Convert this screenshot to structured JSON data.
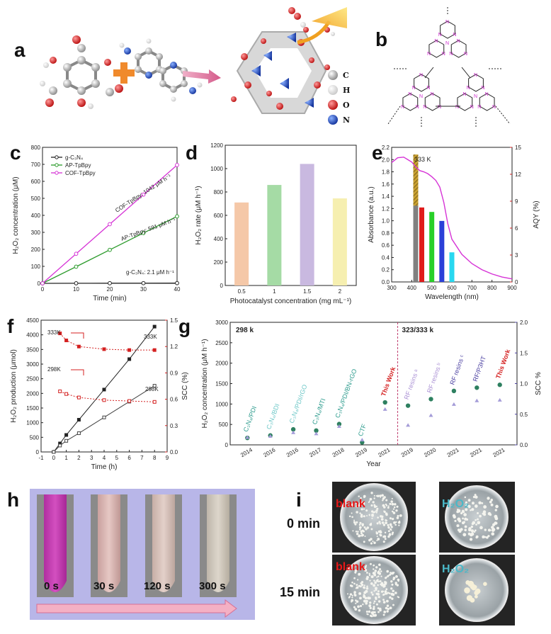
{
  "panel_labels": {
    "a": "a",
    "b": "b",
    "c": "c",
    "d": "d",
    "e": "e",
    "f": "f",
    "g": "g",
    "h": "h",
    "i": "i"
  },
  "molecule_legend": [
    {
      "label": "C",
      "color": "#9a9a9a"
    },
    {
      "label": "H",
      "color": "#f2f2f2"
    },
    {
      "label": "O",
      "color": "#e01b1b"
    },
    {
      "label": "N",
      "color": "#1b4fc9"
    }
  ],
  "colors": {
    "black": "#222222",
    "green": "#2a9a2a",
    "magenta": "#d633d6",
    "red": "#d42020",
    "teal": "#2e9c8e",
    "purple": "#4a3fa0"
  },
  "chart_data": [
    {
      "id": "c",
      "type": "line",
      "xlabel": "Time (min)",
      "ylabel": "H₂O₂ concentration (μM)",
      "xlim": [
        0,
        40
      ],
      "ylim": [
        0,
        800
      ],
      "xticks": [
        0,
        10,
        20,
        30,
        40
      ],
      "yticks": [
        0,
        100,
        200,
        300,
        400,
        500,
        600,
        700,
        800
      ],
      "series": [
        {
          "name": "g-C₃N₄",
          "color": "#222222",
          "x": [
            0,
            10,
            20,
            30,
            40
          ],
          "y": [
            0,
            0.4,
            0.7,
            1.1,
            1.4
          ]
        },
        {
          "name": "AP-TpBpy",
          "color": "#2a9a2a",
          "x": [
            0,
            10,
            20,
            30,
            40
          ],
          "y": [
            0,
            98,
            197,
            296,
            394
          ]
        },
        {
          "name": "COF-TpBpy",
          "color": "#d633d6",
          "x": [
            0,
            10,
            20,
            30,
            40
          ],
          "y": [
            0,
            174,
            348,
            522,
            696
          ]
        }
      ],
      "annotations": [
        {
          "text": "COF-TpBpy: 1042 μM h⁻¹",
          "color": "#d633d6"
        },
        {
          "text": "AP-TpBpy: 591 μM h⁻¹",
          "color": "#2a9a2a"
        },
        {
          "text": "g-C₃N₄: 2.1 μM h⁻¹",
          "color": "#222222"
        }
      ]
    },
    {
      "id": "d",
      "type": "bar",
      "xlabel": "Photocatalyst concentration (mg mL⁻¹)",
      "ylabel": "H₂O₂ rate (μM h⁻¹)",
      "ylim": [
        0,
        1200
      ],
      "yticks": [
        0,
        200,
        400,
        600,
        800,
        1000,
        1200
      ],
      "categories": [
        "0.5",
        "1",
        "1.5",
        "2"
      ],
      "values": [
        710,
        860,
        1040,
        745
      ],
      "colors": [
        "#f5c8a8",
        "#a5dba5",
        "#c9b9e0",
        "#f6efb0"
      ]
    },
    {
      "id": "e",
      "type": "bar",
      "xlabel": "Wavelength (nm)",
      "ylabel": "Absorbance (a.u.)",
      "ylabel_right": "AQY (%)",
      "xlim": [
        300,
        900
      ],
      "ylim": [
        0,
        2.2
      ],
      "ylim_right": [
        0,
        15
      ],
      "xticks": [
        300,
        400,
        500,
        600,
        700,
        800,
        900
      ],
      "yticks": [
        0.0,
        0.2,
        0.4,
        0.6,
        0.8,
        1.0,
        1.2,
        1.4,
        1.6,
        1.8,
        2.0,
        2.2
      ],
      "yticks_right": [
        0,
        3,
        6,
        9,
        12,
        15
      ],
      "annotation": "333 K",
      "bars": [
        {
          "x": 420,
          "aqy": 14.2,
          "color": "#c8a030"
        },
        {
          "x": 420,
          "aqy": 8.5,
          "color": "#808080"
        },
        {
          "x": 450,
          "aqy": 8.3,
          "color": "#e01b1b"
        },
        {
          "x": 500,
          "aqy": 7.8,
          "color": "#28d028"
        },
        {
          "x": 550,
          "aqy": 6.8,
          "color": "#2b40d8"
        },
        {
          "x": 600,
          "aqy": 3.3,
          "color": "#28d8f0"
        }
      ],
      "absorbance": {
        "color": "#d633d6",
        "x": [
          300,
          330,
          360,
          380,
          400,
          420,
          440,
          460,
          480,
          500,
          520,
          540,
          560,
          580,
          600,
          650,
          700,
          750,
          800,
          850,
          900
        ],
        "y": [
          1.95,
          2.03,
          2.04,
          2.0,
          1.96,
          1.88,
          1.82,
          1.8,
          1.77,
          1.72,
          1.66,
          1.55,
          1.3,
          0.95,
          0.7,
          0.45,
          0.3,
          0.2,
          0.13,
          0.08,
          0.05
        ]
      }
    },
    {
      "id": "f",
      "type": "line",
      "xlabel": "Time (h)",
      "ylabel": "H₂O₂ production (μmol)",
      "ylabel_right": "SCC (%)",
      "xlim": [
        -1,
        9
      ],
      "ylim": [
        0,
        4500
      ],
      "ylim_right": [
        0,
        1.5
      ],
      "xticks": [
        -1,
        0,
        1,
        2,
        3,
        4,
        5,
        6,
        7,
        8,
        9
      ],
      "yticks": [
        0,
        500,
        1000,
        1500,
        2000,
        2500,
        3000,
        3500,
        4000,
        4500
      ],
      "yticks_right": [
        0.0,
        0.3,
        0.6,
        0.9,
        1.2,
        1.5
      ],
      "series": [
        {
          "name": "333K",
          "color": "#222222",
          "x": [
            0,
            0.5,
            1,
            2,
            4,
            6,
            8
          ],
          "y": [
            0,
            290,
            580,
            1100,
            2130,
            3170,
            4280
          ]
        },
        {
          "name": "298K",
          "color": "#444444",
          "x": [
            0,
            0.5,
            1,
            2,
            4,
            6,
            8
          ],
          "y": [
            0,
            220,
            380,
            640,
            1180,
            1720,
            2260
          ]
        },
        {
          "name": "333K SCC",
          "color": "#d42020",
          "x": [
            0.5,
            1,
            2,
            4,
            6,
            8
          ],
          "y": [
            1.35,
            1.27,
            1.2,
            1.17,
            1.16,
            1.16
          ]
        },
        {
          "name": "298K SCC",
          "color": "#d42020",
          "x": [
            0.5,
            1,
            2,
            4,
            6,
            8
          ],
          "y": [
            0.69,
            0.66,
            0.62,
            0.59,
            0.58,
            0.57
          ]
        }
      ],
      "labels": [
        {
          "text": "333K",
          "color": "#d42020"
        },
        {
          "text": "298K",
          "color": "#d42020"
        },
        {
          "text": "333K",
          "color": "#222222"
        },
        {
          "text": "298K",
          "color": "#222222"
        }
      ]
    },
    {
      "id": "g",
      "type": "scatter",
      "xlabel": "Year",
      "ylabel": "H₂O₂ concentration (μM h⁻¹)",
      "ylabel_right": "SCC %",
      "ylim": [
        0,
        3000
      ],
      "ylim_right": [
        0,
        2.0
      ],
      "yticks": [
        0,
        500,
        1000,
        1500,
        2000,
        2500,
        3000
      ],
      "yticks_right": [
        0.0,
        0.5,
        1.0,
        1.5,
        2.0
      ],
      "region_labels": [
        {
          "text": "298 k",
          "color": "#3aa0c8"
        },
        {
          "text": "323/333 k",
          "color": "#4a3fa0"
        }
      ],
      "points": [
        {
          "year": "2014",
          "label": "C₃N₄/PDI",
          "conc": 170,
          "scc": 0.12,
          "label_color": "#2e9c8e"
        },
        {
          "year": "2016",
          "label": "C₃N₄/BDI",
          "conc": 230,
          "scc": 0.14,
          "label_color": "#6fc8c8"
        },
        {
          "year": "2016",
          "label": "C₃N₄/PDI/rGO",
          "conc": 380,
          "scc": 0.2,
          "label_color": "#6fc8c8"
        },
        {
          "year": "2017",
          "label": "C₃N₄/MTI",
          "conc": 350,
          "scc": 0.18,
          "label_color": "#2e9c8e"
        },
        {
          "year": "2018",
          "label": "C₃N₄/PDI/BN-rGO",
          "conc": 510,
          "scc": 0.3,
          "label_color": "#2e9c8e"
        },
        {
          "year": "2019",
          "label": "CTF",
          "conc": 60,
          "scc": 0.08,
          "label_color": "#2e9c8e"
        },
        {
          "year": "2021",
          "label": "This Work",
          "conc": 1040,
          "scc": 0.58,
          "label_color": "#d42020"
        },
        {
          "year": "2019",
          "label": "RF resins ᵃ",
          "conc": 960,
          "scc": 0.32,
          "label_color": "#a98fd4"
        },
        {
          "year": "2020",
          "label": "RF resins ᵇ",
          "conc": 1120,
          "scc": 0.48,
          "label_color": "#a98fd4"
        },
        {
          "year": "2021",
          "label": "RF resins ᶜ",
          "conc": 1320,
          "scc": 0.66,
          "label_color": "#4a3fa0"
        },
        {
          "year": "2021",
          "label": "RF/P3HT",
          "conc": 1400,
          "scc": 0.72,
          "label_color": "#4a3fa0"
        },
        {
          "year": "2021",
          "label": "This Work",
          "conc": 1470,
          "scc": 0.73,
          "label_color": "#d42020"
        }
      ]
    }
  ],
  "panel_h": {
    "labels": [
      "0 s",
      "30 s",
      "120 s",
      "300 s"
    ]
  },
  "panel_i": {
    "row_labels": [
      "0 min",
      "15 min"
    ],
    "blank": "blank",
    "h2o2": "H₂O₂"
  }
}
